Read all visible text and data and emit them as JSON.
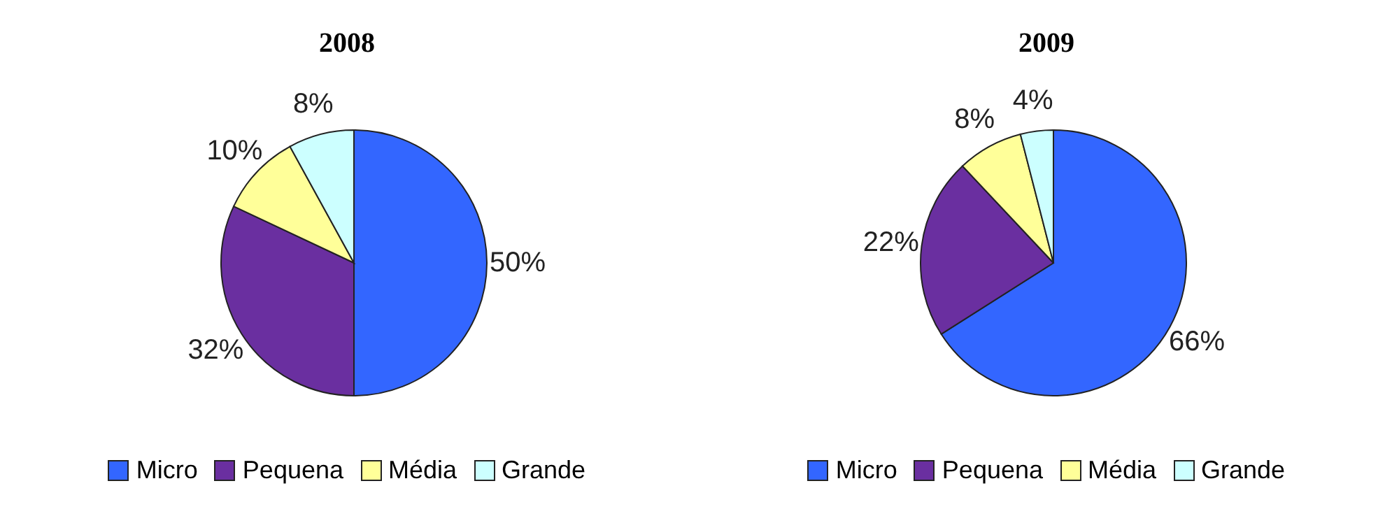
{
  "chart_data": [
    {
      "type": "pie",
      "title": "2008",
      "categories": [
        "Micro",
        "Pequena",
        "Média",
        "Grande"
      ],
      "values": [
        50,
        32,
        10,
        8
      ],
      "value_labels": [
        "50%",
        "32%",
        "10%",
        "8%"
      ],
      "colors": [
        "#3366ff",
        "#6a2fa0",
        "#ffff99",
        "#ccffff"
      ],
      "legend": "bottom"
    },
    {
      "type": "pie",
      "title": "2009",
      "categories": [
        "Micro",
        "Pequena",
        "Média",
        "Grande"
      ],
      "values": [
        66,
        22,
        8,
        4
      ],
      "value_labels": [
        "66%",
        "22%",
        "8%",
        "4%"
      ],
      "colors": [
        "#3366ff",
        "#6a2fa0",
        "#ffff99",
        "#ccffff"
      ],
      "legend": "bottom"
    }
  ]
}
